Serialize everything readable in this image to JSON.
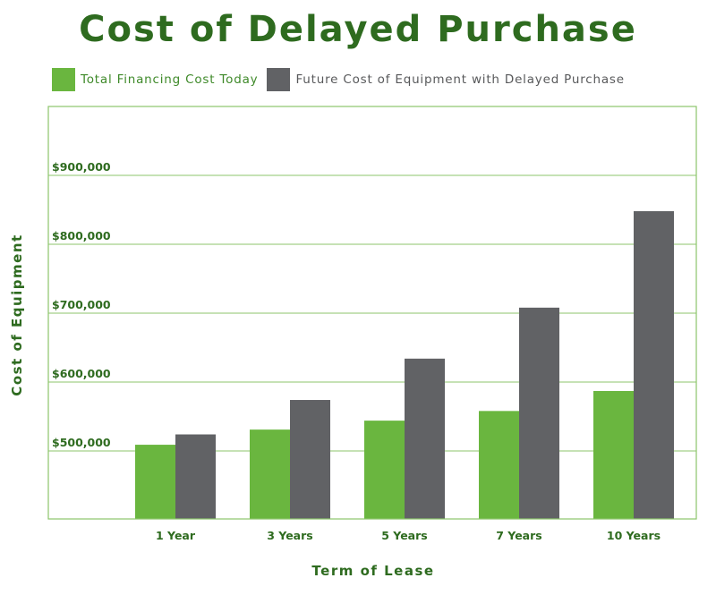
{
  "chart_data": {
    "type": "bar",
    "title": "Cost of Delayed Purchase",
    "xlabel": "Term of Lease",
    "ylabel": "Cost of Equipment",
    "categories": [
      "1 Year",
      "3 Years",
      "5 Years",
      "7 Years",
      "10 Years"
    ],
    "series": [
      {
        "name": "Total Financing Cost Today",
        "color": "#6ab63f",
        "values": [
          509000,
          531000,
          544000,
          558000,
          587000
        ]
      },
      {
        "name": "Future Cost of Equipment with Delayed Purchase",
        "color": "#616265",
        "values": [
          524000,
          574000,
          634000,
          708000,
          848000
        ]
      }
    ],
    "yticks": [
      500000,
      600000,
      700000,
      800000,
      900000
    ],
    "ytick_labels": [
      "$500,000",
      "$600,000",
      "$700,000",
      "$800,000",
      "$900,000"
    ],
    "ylim": [
      400000,
      1000000
    ],
    "grid": true,
    "legend_position": "top"
  },
  "colors": {
    "title": "#2e6b1f",
    "frame": "#8cc56b",
    "grid": "#8cc56b"
  }
}
